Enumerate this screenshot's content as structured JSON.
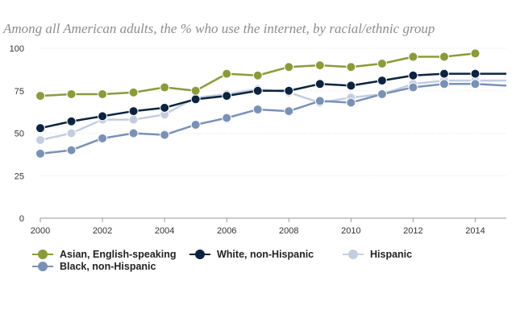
{
  "chart_data": {
    "type": "line",
    "title": "",
    "subtitle": "Among all American adults, the % who use the internet, by racial/ethnic group",
    "xlabel": "",
    "ylabel": "",
    "x": [
      2000,
      2001,
      2002,
      2003,
      2004,
      2005,
      2006,
      2007,
      2008,
      2009,
      2010,
      2011,
      2012,
      2013,
      2014,
      2015
    ],
    "xlim": [
      2000,
      2015
    ],
    "ylim": [
      0,
      100
    ],
    "x_ticks": [
      "2000",
      "2002",
      "2004",
      "2006",
      "2008",
      "2010",
      "2012",
      "2014"
    ],
    "x_tick_values": [
      2000,
      2002,
      2004,
      2006,
      2008,
      2010,
      2012,
      2014
    ],
    "y_ticks": [
      "0",
      "25",
      "50",
      "75",
      "100"
    ],
    "y_tick_values": [
      0,
      25,
      50,
      75,
      100
    ],
    "grid": "horizontal",
    "legend_position": "bottom",
    "series": [
      {
        "name": "Asian, English-speaking",
        "color": "#8a9b3a",
        "values": [
          72,
          73,
          73,
          74,
          77,
          75,
          85,
          84,
          89,
          90,
          89,
          91,
          95,
          95,
          97,
          null
        ]
      },
      {
        "name": "White, non-Hispanic",
        "color": "#0c2340",
        "values": [
          53,
          57,
          60,
          63,
          65,
          70,
          72,
          75,
          75,
          79,
          78,
          81,
          84,
          85,
          85,
          85
        ]
      },
      {
        "name": "Hispanic",
        "color": "#c4cde0",
        "values": [
          46,
          50,
          58,
          58,
          61,
          71,
          73,
          76,
          74,
          68,
          71,
          73,
          79,
          81,
          81,
          81
        ]
      },
      {
        "name": "Black, non-Hispanic",
        "color": "#7a91b6",
        "values": [
          38,
          40,
          47,
          50,
          49,
          55,
          59,
          64,
          63,
          69,
          68,
          73,
          77,
          79,
          79,
          78
        ]
      }
    ]
  }
}
